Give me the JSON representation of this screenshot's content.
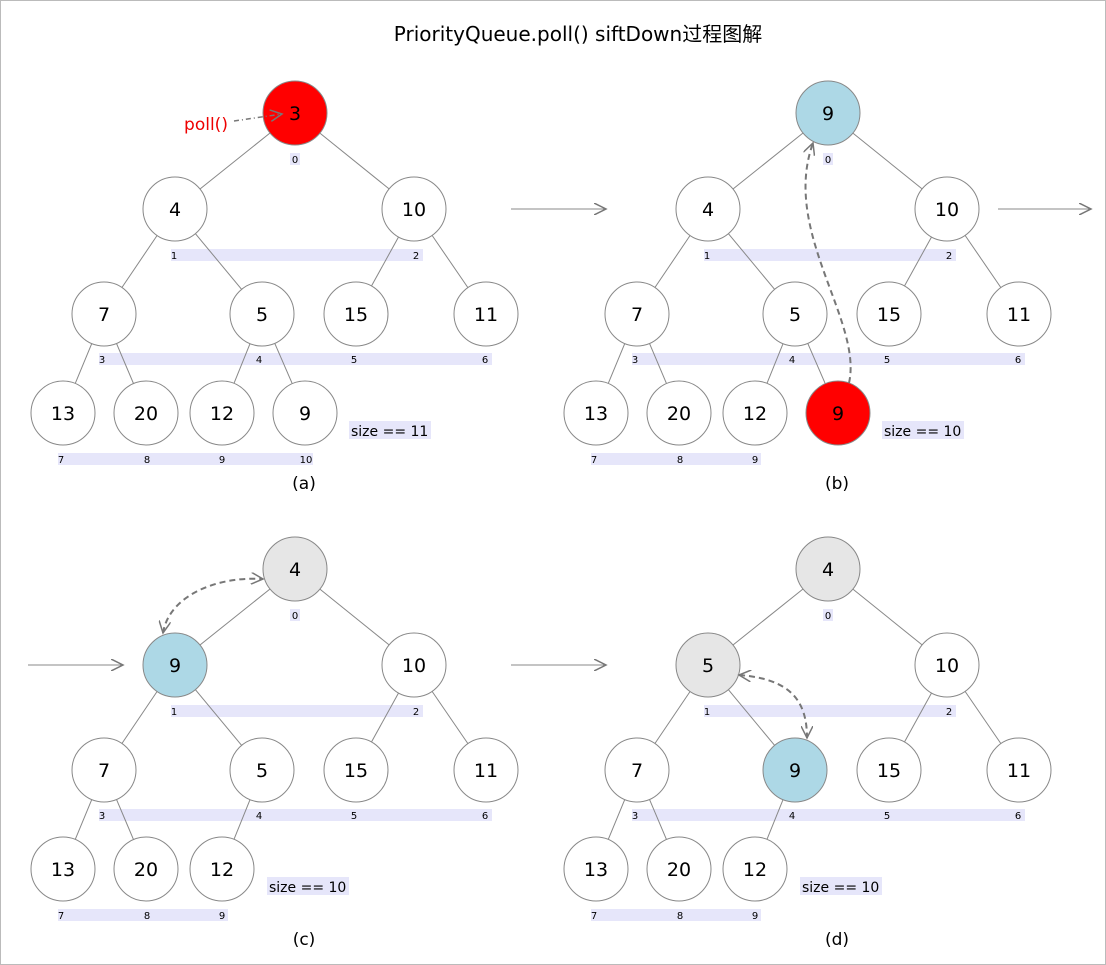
{
  "title": "PriorityQueue.poll() siftDown过程图解",
  "colors": {
    "removed": "#ff0000",
    "moving": "#add8e6",
    "settled": "#e6e6e6",
    "normal": "#ffffff",
    "index_band": "#e6e6fa",
    "edge": "#888888"
  },
  "poll_label": "poll()",
  "panels": [
    {
      "caption": "(a)",
      "size_text": "size == 11",
      "values": [
        "3",
        "4",
        "10",
        "7",
        "5",
        "15",
        "11",
        "13",
        "20",
        "12",
        "9"
      ],
      "indices": [
        "0",
        "1",
        "2",
        "3",
        "4",
        "5",
        "6",
        "7",
        "8",
        "9",
        "10"
      ],
      "fills": [
        "removed",
        "normal",
        "normal",
        "normal",
        "normal",
        "normal",
        "normal",
        "normal",
        "normal",
        "normal",
        "normal"
      ]
    },
    {
      "caption": "(b)",
      "size_text": "size == 10",
      "values": [
        "9",
        "4",
        "10",
        "7",
        "5",
        "15",
        "11",
        "13",
        "20",
        "12",
        "9"
      ],
      "indices": [
        "0",
        "1",
        "2",
        "3",
        "4",
        "5",
        "6",
        "7",
        "8",
        "9"
      ],
      "fills": [
        "moving",
        "normal",
        "normal",
        "normal",
        "normal",
        "normal",
        "normal",
        "normal",
        "normal",
        "normal",
        "removed"
      ]
    },
    {
      "caption": "(c)",
      "size_text": "size == 10",
      "values": [
        "4",
        "9",
        "10",
        "7",
        "5",
        "15",
        "11",
        "13",
        "20",
        "12"
      ],
      "indices": [
        "0",
        "1",
        "2",
        "3",
        "4",
        "5",
        "6",
        "7",
        "8",
        "9"
      ],
      "fills": [
        "settled",
        "moving",
        "normal",
        "normal",
        "normal",
        "normal",
        "normal",
        "normal",
        "normal",
        "normal"
      ]
    },
    {
      "caption": "(d)",
      "size_text": "size == 10",
      "values": [
        "4",
        "5",
        "10",
        "7",
        "9",
        "15",
        "11",
        "13",
        "20",
        "12"
      ],
      "indices": [
        "0",
        "1",
        "2",
        "3",
        "4",
        "5",
        "6",
        "7",
        "8",
        "9"
      ],
      "fills": [
        "settled",
        "settled",
        "normal",
        "normal",
        "moving",
        "normal",
        "normal",
        "normal",
        "normal",
        "normal"
      ]
    }
  ]
}
